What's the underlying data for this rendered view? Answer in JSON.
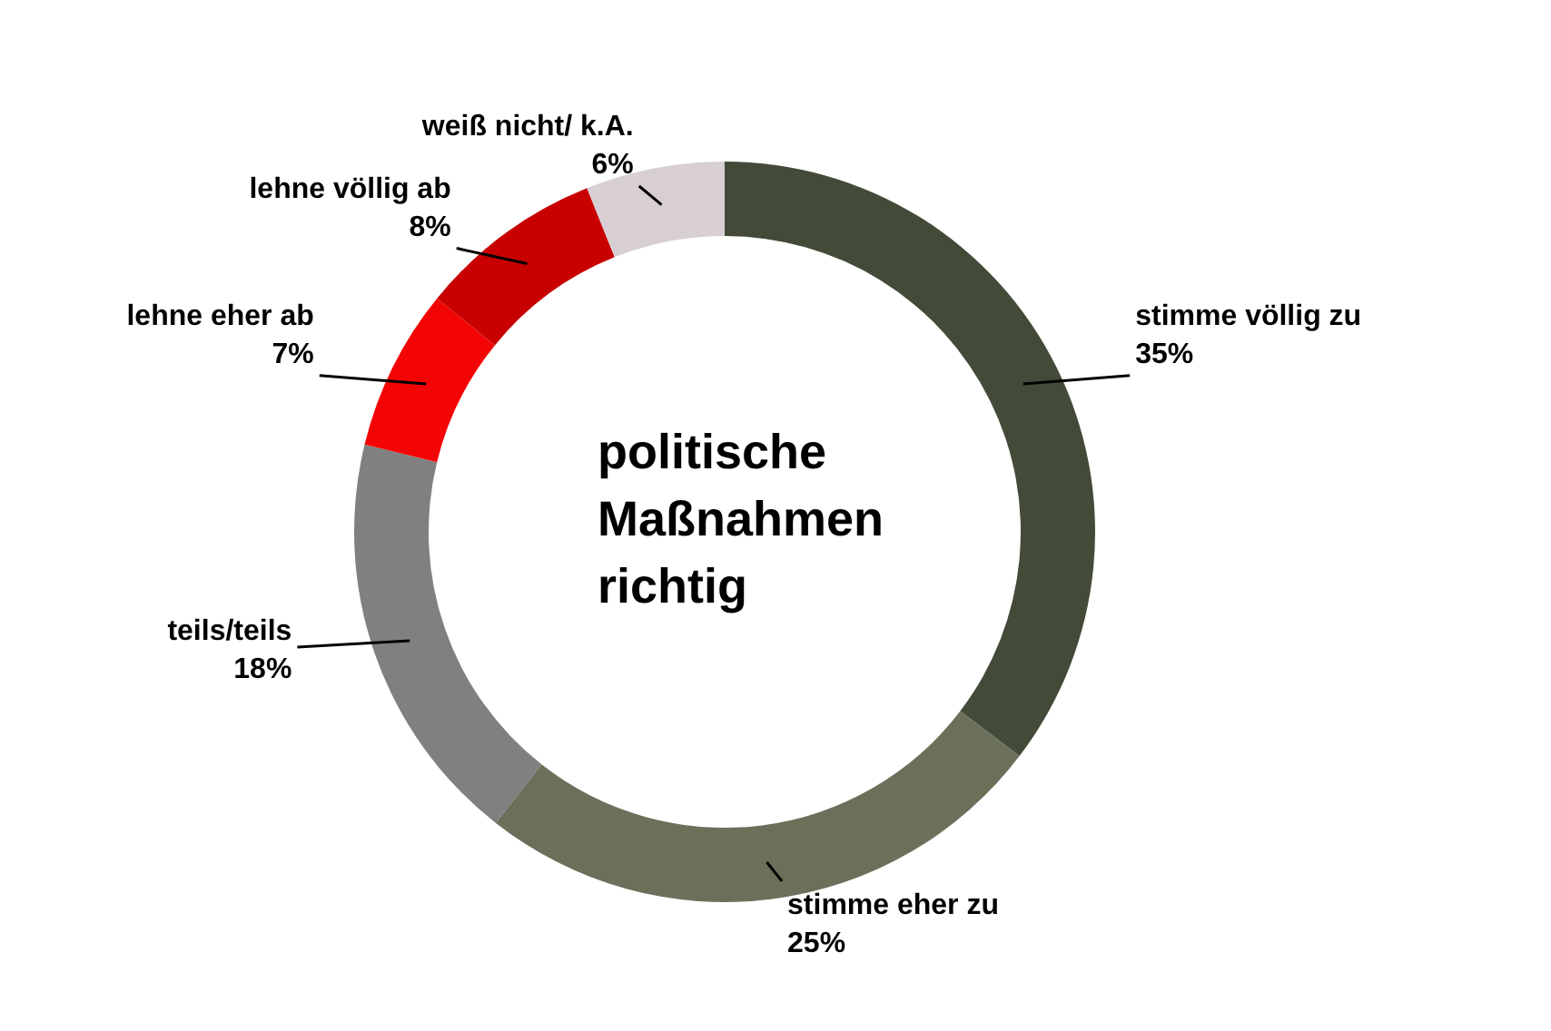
{
  "chart_data": {
    "type": "donut",
    "title": "politische Maßnahmen richtig",
    "categories": [
      "stimme völlig zu",
      "stimme eher zu",
      "teils/teils",
      "lehne eher ab",
      "lehne völlig ab",
      "weiß nicht/ k.A."
    ],
    "values": [
      35,
      25,
      18,
      7,
      8,
      6
    ],
    "value_labels": [
      "35%",
      "25%",
      "18%",
      "7%",
      "8%",
      "6%"
    ],
    "colors": [
      "#434b38",
      "#6b705b",
      "#808080",
      "#f40505",
      "#c80000",
      "#d8cfd4"
    ],
    "legend": false
  }
}
